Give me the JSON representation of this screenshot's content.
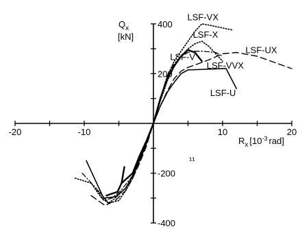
{
  "chart_data": {
    "type": "line",
    "ylabel_main": "Q",
    "ylabel_sub": "x",
    "ylabel_unit": "[kN]",
    "xlabel_main": "R",
    "xlabel_sub": "x",
    "xlabel_unit": "[10",
    "xlabel_exp": "-3",
    "xlabel_unit_end": "rad]",
    "stray_mark": "¹¹",
    "xlim": [
      -20,
      20
    ],
    "ylim": [
      -400,
      400
    ],
    "x_tick_labels": [
      {
        "value": -20,
        "label": "-20"
      },
      {
        "value": -10,
        "label": "-10"
      },
      {
        "value": 10,
        "label": "10"
      },
      {
        "value": 20,
        "label": "20"
      }
    ],
    "y_tick_labels": [
      {
        "value": 400,
        "label": "400"
      },
      {
        "value": 200,
        "label": "200"
      },
      {
        "value": -200,
        "label": "-200"
      },
      {
        "value": -400,
        "label": "-400"
      }
    ],
    "series": [
      {
        "name": "LSF-VX",
        "style": "dotted",
        "points": [
          [
            -11.3,
            -220
          ],
          [
            -9,
            -240
          ],
          [
            -7.5,
            -300
          ],
          [
            -6.5,
            -320
          ],
          [
            -5.5,
            -300
          ],
          [
            -4,
            -260
          ],
          [
            -3,
            -210
          ],
          [
            -2,
            -150
          ],
          [
            -1,
            -80
          ],
          [
            0,
            0
          ],
          [
            1,
            100
          ],
          [
            2,
            190
          ],
          [
            3,
            250
          ],
          [
            4,
            290
          ],
          [
            5,
            330
          ],
          [
            6,
            370
          ],
          [
            7,
            400
          ],
          [
            8,
            395
          ],
          [
            11.5,
            375
          ]
        ]
      },
      {
        "name": "LSF-X",
        "style": "dotted",
        "points": [
          [
            -8,
            -270
          ],
          [
            -6.5,
            -320
          ],
          [
            -5,
            -310
          ],
          [
            -4,
            -270
          ],
          [
            -3,
            -220
          ],
          [
            -2,
            -150
          ],
          [
            -1,
            -80
          ],
          [
            0,
            0
          ],
          [
            1,
            90
          ],
          [
            2,
            170
          ],
          [
            3,
            230
          ],
          [
            4,
            270
          ],
          [
            5,
            300
          ],
          [
            6,
            320
          ],
          [
            7,
            330
          ],
          [
            8,
            310
          ],
          [
            9,
            280
          ],
          [
            10,
            250
          ]
        ]
      },
      {
        "name": "LSF-UX",
        "style": "dashed",
        "points": [
          [
            -9,
            -290
          ],
          [
            -7,
            -330
          ],
          [
            -5.5,
            -310
          ],
          [
            -4,
            -270
          ],
          [
            -3,
            -220
          ],
          [
            -2,
            -160
          ],
          [
            -1,
            -90
          ],
          [
            0,
            0
          ],
          [
            1,
            70
          ],
          [
            2,
            130
          ],
          [
            3,
            180
          ],
          [
            4,
            210
          ],
          [
            5,
            225
          ],
          [
            6,
            235
          ],
          [
            8,
            255
          ],
          [
            10,
            280
          ],
          [
            12,
            285
          ],
          [
            15,
            270
          ],
          [
            20,
            220
          ]
        ]
      },
      {
        "name": "LSF-VVX",
        "style": "dashdot",
        "points": [
          [
            -10.3,
            -200
          ],
          [
            -8.3,
            -260
          ],
          [
            -7.2,
            -310
          ],
          [
            -6,
            -300
          ],
          [
            -4.7,
            -270
          ],
          [
            -3,
            -210
          ],
          [
            -2,
            -150
          ],
          [
            -1,
            -80
          ],
          [
            0,
            0
          ],
          [
            1,
            100
          ],
          [
            2,
            190
          ],
          [
            3,
            240
          ],
          [
            4,
            270
          ],
          [
            5,
            285
          ],
          [
            6,
            290
          ],
          [
            7,
            290
          ],
          [
            9,
            285
          ],
          [
            10,
            270
          ]
        ]
      },
      {
        "name": "LSF-V",
        "style": "solid-thick",
        "points": [
          [
            -6.8,
            -290
          ],
          [
            -5.2,
            -275
          ],
          [
            -4.6,
            -240
          ],
          [
            -4.2,
            -175
          ],
          [
            -4.6,
            -240
          ],
          [
            -3,
            -200
          ],
          [
            -2,
            -130
          ],
          [
            -1,
            -70
          ],
          [
            0,
            0
          ],
          [
            1,
            100
          ],
          [
            2,
            180
          ],
          [
            3,
            230
          ],
          [
            4,
            270
          ],
          [
            5,
            295
          ],
          [
            6,
            285
          ],
          [
            7,
            250
          ]
        ]
      },
      {
        "name": "LSF-U",
        "style": "solid",
        "points": [
          [
            -9.7,
            -150
          ],
          [
            -7.2,
            -300
          ],
          [
            -5.5,
            -295
          ],
          [
            -4,
            -260
          ],
          [
            -3,
            -210
          ],
          [
            -2,
            -140
          ],
          [
            -1,
            -70
          ],
          [
            0,
            0
          ],
          [
            1,
            70
          ],
          [
            2,
            125
          ],
          [
            3,
            165
          ],
          [
            4,
            200
          ],
          [
            5,
            215
          ],
          [
            10,
            220
          ],
          [
            10.5,
            220
          ],
          [
            12,
            140
          ]
        ]
      }
    ],
    "series_labels": [
      {
        "text": "LSF-VX",
        "x": 4.9,
        "y": 415
      },
      {
        "text": "LSF-X",
        "x": 5.7,
        "y": 345
      },
      {
        "text": "LSF-UX",
        "x": 13.3,
        "y": 282
      },
      {
        "text": "LSF-VVX",
        "x": 7.7,
        "y": 220
      },
      {
        "text": "LSF-V",
        "x": 2.4,
        "y": 255
      },
      {
        "text": "LSF-U",
        "x": 8.2,
        "y": 110
      }
    ]
  }
}
